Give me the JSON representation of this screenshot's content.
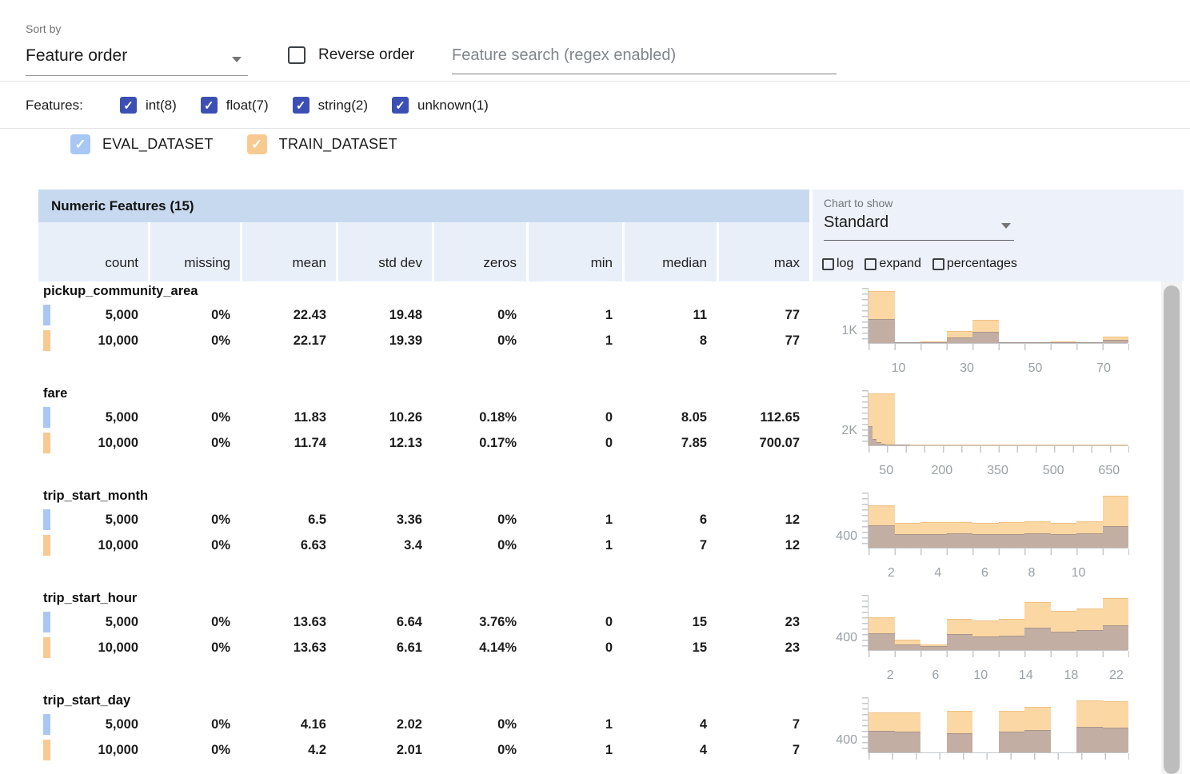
{
  "toolbar": {
    "sort_by_label": "Sort by",
    "sort_value": "Feature order",
    "reverse_label": "Reverse order",
    "search_placeholder": "Feature search (regex enabled)"
  },
  "filters": {
    "label": "Features:",
    "accent_color": "#3c50b4",
    "items": [
      {
        "label": "int(8)",
        "checked": true
      },
      {
        "label": "float(7)",
        "checked": true
      },
      {
        "label": "string(2)",
        "checked": true
      },
      {
        "label": "unknown(1)",
        "checked": true
      }
    ]
  },
  "legend": {
    "datasets": [
      {
        "name": "EVAL_DATASET",
        "color": "#a9c7f5",
        "checked": true
      },
      {
        "name": "TRAIN_DATASET",
        "color": "#f8ca92",
        "checked": true
      }
    ]
  },
  "table": {
    "title": "Numeric Features (15)",
    "columns": [
      "count",
      "missing",
      "mean",
      "std dev",
      "zeros",
      "min",
      "median",
      "max"
    ]
  },
  "chart_controls": {
    "label": "Chart to show",
    "value": "Standard",
    "options": [
      {
        "label": "log",
        "checked": false
      },
      {
        "label": "expand",
        "checked": false
      },
      {
        "label": "percentages",
        "checked": false
      }
    ]
  },
  "features": [
    {
      "name": "pickup_community_area",
      "rows": [
        {
          "dataset": "EVAL_DATASET",
          "values": [
            "5,000",
            "0%",
            "22.43",
            "19.48",
            "0%",
            "1",
            "11",
            "77"
          ]
        },
        {
          "dataset": "TRAIN_DATASET",
          "values": [
            "10,000",
            "0%",
            "22.17",
            "19.39",
            "0%",
            "1",
            "8",
            "77"
          ]
        }
      ]
    },
    {
      "name": "fare",
      "rows": [
        {
          "dataset": "EVAL_DATASET",
          "values": [
            "5,000",
            "0%",
            "11.83",
            "10.26",
            "0.18%",
            "0",
            "8.05",
            "112.65"
          ]
        },
        {
          "dataset": "TRAIN_DATASET",
          "values": [
            "10,000",
            "0%",
            "11.74",
            "12.13",
            "0.17%",
            "0",
            "7.85",
            "700.07"
          ]
        }
      ]
    },
    {
      "name": "trip_start_month",
      "rows": [
        {
          "dataset": "EVAL_DATASET",
          "values": [
            "5,000",
            "0%",
            "6.5",
            "3.36",
            "0%",
            "1",
            "6",
            "12"
          ]
        },
        {
          "dataset": "TRAIN_DATASET",
          "values": [
            "10,000",
            "0%",
            "6.63",
            "3.4",
            "0%",
            "1",
            "7",
            "12"
          ]
        }
      ]
    },
    {
      "name": "trip_start_hour",
      "rows": [
        {
          "dataset": "EVAL_DATASET",
          "values": [
            "5,000",
            "0%",
            "13.63",
            "6.64",
            "3.76%",
            "0",
            "15",
            "23"
          ]
        },
        {
          "dataset": "TRAIN_DATASET",
          "values": [
            "10,000",
            "0%",
            "13.63",
            "6.61",
            "4.14%",
            "0",
            "15",
            "23"
          ]
        }
      ]
    },
    {
      "name": "trip_start_day",
      "rows": [
        {
          "dataset": "EVAL_DATASET",
          "values": [
            "5,000",
            "0%",
            "4.16",
            "2.02",
            "0%",
            "1",
            "4",
            "7"
          ]
        },
        {
          "dataset": "TRAIN_DATASET",
          "values": [
            "10,000",
            "0%",
            "4.2",
            "2.01",
            "0%",
            "1",
            "4",
            "7"
          ]
        }
      ]
    }
  ],
  "chart_data": [
    {
      "type": "bar",
      "title": "pickup_community_area histogram",
      "x_axis": {
        "min": 1,
        "max": 77,
        "labels": [
          10,
          30,
          50,
          70
        ],
        "tick_count": 10
      },
      "y_axis": {
        "label_text": "1K",
        "label_value": 1000,
        "max": 4750
      },
      "series": [
        {
          "name": "TRAIN_DATASET",
          "color": "#fbd7a4",
          "x_min": 1,
          "x_max": 77,
          "values": [
            4400,
            60,
            110,
            1000,
            1950,
            30,
            25,
            130,
            30,
            550
          ]
        },
        {
          "name": "EVAL_DATASET (overlap)",
          "color": "#c2aea2",
          "x_min": 1,
          "x_max": 77,
          "values": [
            2050,
            30,
            50,
            480,
            950,
            15,
            10,
            60,
            15,
            270
          ]
        }
      ]
    },
    {
      "type": "bar",
      "title": "fare histogram",
      "x_axis": {
        "min": 0,
        "max": 700,
        "labels": [
          50,
          200,
          350,
          500,
          650
        ],
        "tick_count": 14
      },
      "y_axis": {
        "label_text": "2K",
        "label_value": 2000,
        "max": 7800
      },
      "series": [
        {
          "name": "TRAIN_DATASET",
          "color": "#fbd7a4",
          "x_min": 0,
          "x_max": 700,
          "values": [
            7300,
            150,
            40,
            20,
            10,
            5,
            3,
            2,
            1,
            1
          ]
        },
        {
          "name": "EVAL_DATASET (overlap)",
          "color": "#c2aea2",
          "x_min": 0,
          "x_max": 113,
          "values": [
            2700,
            900,
            400,
            250,
            160,
            110,
            70,
            40,
            25,
            15
          ]
        }
      ]
    },
    {
      "type": "bar",
      "title": "trip_start_month histogram",
      "x_axis": {
        "min": 1,
        "max": 12.1,
        "labels": [
          2,
          4,
          6,
          8,
          10
        ],
        "tick_count": 10
      },
      "y_axis": {
        "label_text": "400",
        "label_value": 400,
        "max": 1990
      },
      "series": [
        {
          "name": "TRAIN_DATASET",
          "color": "#fbd7a4",
          "x_min": 1,
          "x_max": 12.1,
          "values": [
            1520,
            880,
            900,
            910,
            890,
            900,
            930,
            870,
            950,
            1840
          ]
        },
        {
          "name": "EVAL_DATASET (overlap)",
          "color": "#c2aea2",
          "x_min": 1,
          "x_max": 12.1,
          "values": [
            790,
            480,
            490,
            500,
            490,
            495,
            500,
            480,
            505,
            780
          ]
        }
      ]
    },
    {
      "type": "bar",
      "title": "trip_start_hour histogram",
      "x_axis": {
        "min": 0,
        "max": 23,
        "labels": [
          2,
          6,
          10,
          14,
          18,
          22
        ],
        "tick_count": 10
      },
      "y_axis": {
        "label_text": "400",
        "label_value": 400,
        "max": 1840
      },
      "series": [
        {
          "name": "TRAIN_DATASET",
          "color": "#fbd7a4",
          "x_min": 0,
          "x_max": 23,
          "values": [
            1070,
            350,
            175,
            1020,
            975,
            1030,
            1590,
            1290,
            1370,
            1700
          ]
        },
        {
          "name": "EVAL_DATASET (overlap)",
          "color": "#c2aea2",
          "x_min": 0,
          "x_max": 23,
          "values": [
            550,
            190,
            130,
            520,
            435,
            480,
            740,
            610,
            650,
            825
          ]
        }
      ]
    },
    {
      "type": "bar",
      "title": "trip_start_day histogram",
      "x_axis": {
        "min": 1,
        "max": 7,
        "labels": [],
        "tick_count": 11
      },
      "y_axis": {
        "label_text": "400",
        "label_value": 400,
        "max": 1900
      },
      "series": [
        {
          "name": "TRAIN_DATASET",
          "color": "#fbd7a4",
          "x_min": 1,
          "x_max": 7,
          "values": [
            1350,
            1350,
            0,
            1400,
            0,
            1420,
            1550,
            0,
            1760,
            1740
          ]
        },
        {
          "name": "EVAL_DATASET (overlap)",
          "color": "#c2aea2",
          "x_min": 1,
          "x_max": 7,
          "values": [
            720,
            710,
            0,
            640,
            0,
            700,
            760,
            0,
            870,
            830
          ]
        }
      ]
    }
  ]
}
